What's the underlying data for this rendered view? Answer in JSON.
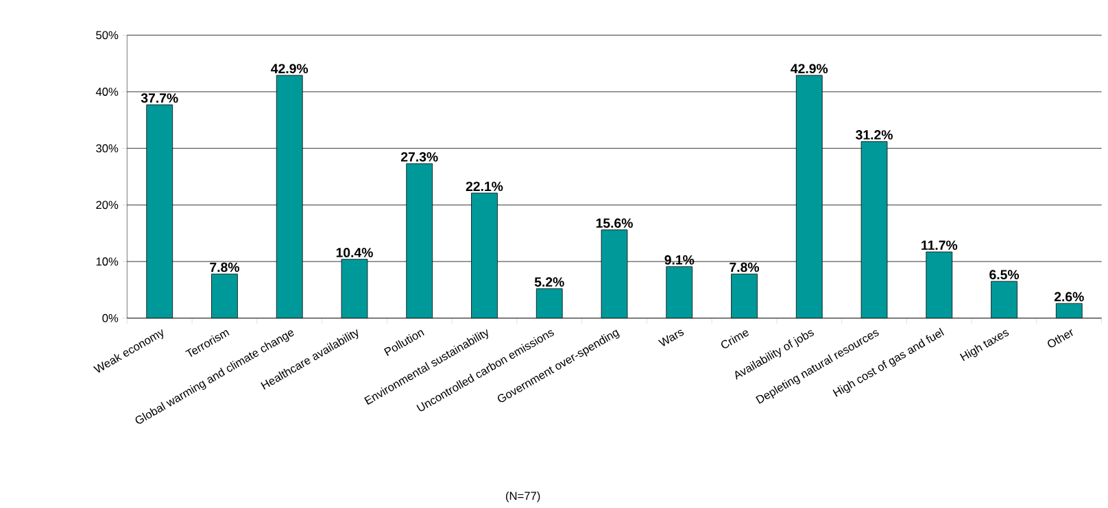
{
  "chart_data": {
    "type": "bar",
    "categories": [
      "Weak economy",
      "Terrorism",
      "Global warming and climate change",
      "Healthcare availability",
      "Pollution",
      "Environmental sustainability",
      "Uncontrolled carbon emissions",
      "Government over-spending",
      "Wars",
      "Crime",
      "Availability of jobs",
      "Depleting natural resources",
      "High cost of gas and fuel",
      "High taxes",
      "Other"
    ],
    "values": [
      37.7,
      7.8,
      42.9,
      10.4,
      27.3,
      22.1,
      5.2,
      15.6,
      9.1,
      7.8,
      42.9,
      31.2,
      11.7,
      6.5,
      2.6
    ],
    "value_labels": [
      "37.7%",
      "7.8%",
      "42.9%",
      "10.4%",
      "27.3%",
      "22.1%",
      "5.2%",
      "15.6%",
      "9.1%",
      "7.8%",
      "42.9%",
      "31.2%",
      "11.7%",
      "6.5%",
      "2.6%"
    ],
    "color": "#009999",
    "ylim": [
      0,
      50
    ],
    "yticks": [
      {
        "value": 0,
        "label": "0%"
      },
      {
        "value": 10,
        "label": "10%"
      },
      {
        "value": 20,
        "label": "20%"
      },
      {
        "value": 30,
        "label": "30%"
      },
      {
        "value": 40,
        "label": "40%"
      },
      {
        "value": 50,
        "label": "50%"
      }
    ],
    "grid": "y",
    "annotations": [
      "(N=77)"
    ]
  }
}
